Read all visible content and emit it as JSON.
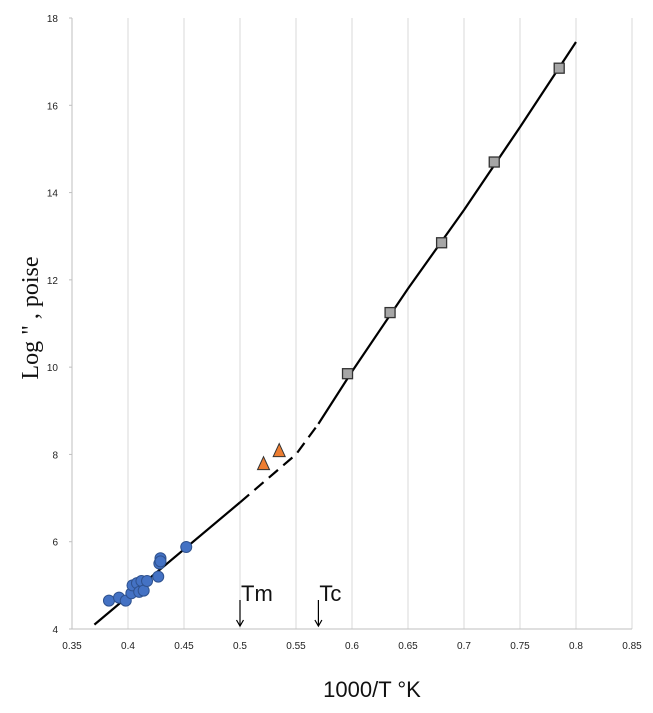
{
  "chart_data": {
    "type": "scatter",
    "title": "",
    "xlabel": "1000/T °K",
    "ylabel": "Log \" , poise",
    "xlim": [
      0.35,
      0.85
    ],
    "ylim": [
      4,
      18
    ],
    "xticks": [
      0.35,
      0.4,
      0.45,
      0.5,
      0.55,
      0.6,
      0.65,
      0.7,
      0.75,
      0.8,
      0.85
    ],
    "xtick_labels": [
      "0.35",
      "0.4",
      "0.45",
      "0.5",
      "0.55",
      "0.6",
      "0.65",
      "0.7",
      "0.75",
      "0.8",
      "0.85"
    ],
    "yticks": [
      4,
      6,
      8,
      10,
      12,
      14,
      16,
      18
    ],
    "ytick_labels": [
      "4",
      "6",
      "8",
      "10",
      "12",
      "14",
      "16",
      "18"
    ],
    "grid": "vertical",
    "legend": "none",
    "series": [
      {
        "marker": "circle",
        "color": "#4472c4",
        "points": [
          [
            0.383,
            4.65
          ],
          [
            0.392,
            4.72
          ],
          [
            0.398,
            4.65
          ],
          [
            0.403,
            4.82
          ],
          [
            0.404,
            5.0
          ],
          [
            0.408,
            5.05
          ],
          [
            0.41,
            4.85
          ],
          [
            0.412,
            5.1
          ],
          [
            0.414,
            4.88
          ],
          [
            0.417,
            5.1
          ],
          [
            0.427,
            5.2
          ],
          [
            0.428,
            5.5
          ],
          [
            0.429,
            5.62
          ],
          [
            0.429,
            5.55
          ],
          [
            0.452,
            5.88
          ]
        ]
      },
      {
        "marker": "triangle",
        "color": "#ed7d31",
        "points": [
          [
            0.521,
            7.8
          ],
          [
            0.535,
            8.1
          ]
        ]
      },
      {
        "marker": "square",
        "color": "#a6a6a6",
        "points": [
          [
            0.596,
            9.85
          ],
          [
            0.634,
            11.25
          ],
          [
            0.68,
            12.85
          ],
          [
            0.727,
            14.7
          ],
          [
            0.785,
            16.85
          ]
        ]
      }
    ],
    "fit_lines": [
      {
        "style": "solid",
        "points": [
          [
            0.37,
            4.1
          ],
          [
            0.5,
            6.9
          ]
        ]
      },
      {
        "style": "dashed",
        "points": [
          [
            0.5,
            6.9
          ],
          [
            0.55,
            8.0
          ],
          [
            0.57,
            8.7
          ]
        ]
      },
      {
        "style": "solid",
        "points": [
          [
            0.57,
            8.7
          ],
          [
            0.6,
            9.9
          ],
          [
            0.65,
            11.8
          ],
          [
            0.7,
            13.6
          ],
          [
            0.75,
            15.5
          ],
          [
            0.8,
            17.45
          ]
        ]
      }
    ],
    "annotations": [
      {
        "label": "Tm",
        "x": 0.5,
        "arrow": "down"
      },
      {
        "label": "Tc",
        "x": 0.57,
        "arrow": "down"
      }
    ]
  }
}
